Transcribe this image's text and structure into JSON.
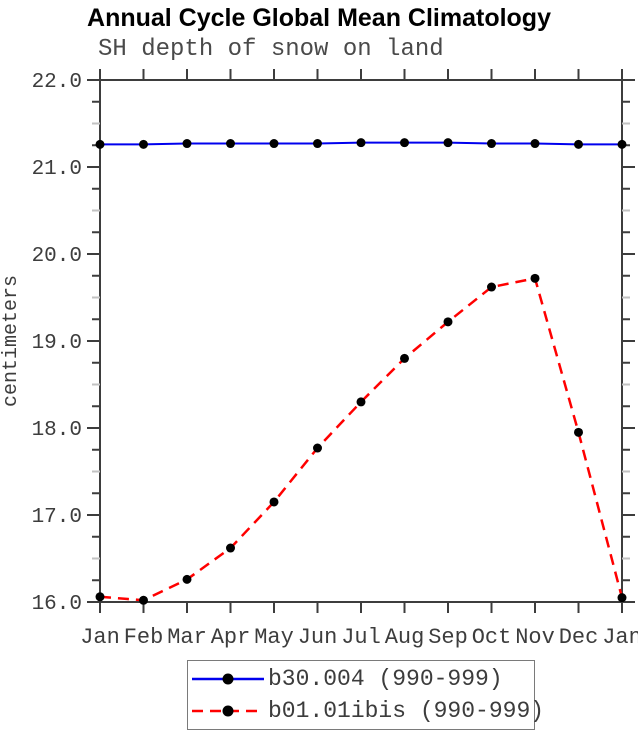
{
  "title": "Annual Cycle Global Mean Climatology",
  "subtitle": "SH depth of snow on land",
  "chart_data": {
    "type": "line",
    "title": "Annual Cycle Global Mean Climatology",
    "subtitle": "SH depth of snow on land",
    "xlabel": "",
    "ylabel": "centimeters",
    "ylim": [
      16.0,
      22.0
    ],
    "ytick_interval": 1.0,
    "yminor_interval": 0.25,
    "ytick_labels": [
      "16.0",
      "17.0",
      "18.0",
      "19.0",
      "20.0",
      "21.0",
      "22.0"
    ],
    "categories": [
      "Jan",
      "Feb",
      "Mar",
      "Apr",
      "May",
      "Jun",
      "Jul",
      "Aug",
      "Sep",
      "Oct",
      "Nov",
      "Dec",
      "Jan"
    ],
    "grid": false,
    "legend_position": "bottom",
    "series": [
      {
        "name": "b30.004 (990-999)",
        "color": "#0000ee",
        "line_style": "solid",
        "marker": "circle",
        "marker_color": "#000000",
        "values": [
          21.26,
          21.26,
          21.27,
          21.27,
          21.27,
          21.27,
          21.28,
          21.28,
          21.28,
          21.27,
          21.27,
          21.26,
          21.26
        ]
      },
      {
        "name": "b01.01ibis (990-999)",
        "color": "#ff0000",
        "line_style": "dashed",
        "marker": "circle",
        "marker_color": "#000000",
        "values": [
          16.06,
          16.02,
          16.26,
          16.62,
          17.15,
          17.77,
          18.3,
          18.8,
          19.22,
          19.62,
          19.72,
          17.95,
          16.05
        ]
      }
    ]
  },
  "colors": {
    "axis": "#3d3d3d",
    "tick_label": "#3d3d3d",
    "minor_tick_light": "#c2c2c2",
    "legend_border": "#7a7a7a",
    "background": "#ffffff"
  }
}
